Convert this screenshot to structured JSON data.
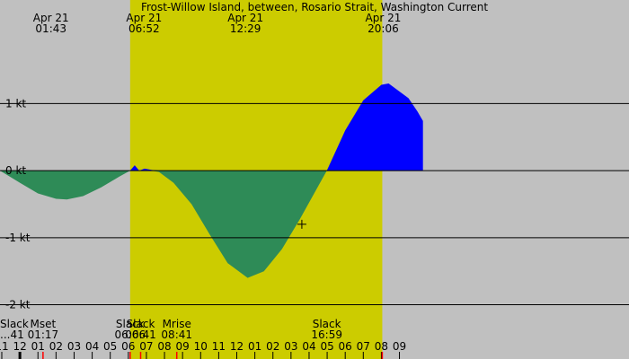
{
  "chart_data": {
    "type": "area",
    "title": "Frost-Willow Island, between, Rosario Strait, Washington Current",
    "unit": "kt",
    "y_ticks": [
      {
        "value": 1,
        "label": "1 kt"
      },
      {
        "value": 0,
        "label": "0 kt"
      },
      {
        "value": -1,
        "label": "-1 kt"
      },
      {
        "value": -2,
        "label": "-2 kt"
      }
    ],
    "ylim": [
      -2.1,
      2.25
    ],
    "x_range_hours": [
      -1.1,
      33.7
    ],
    "day_shading": {
      "start_hour": 6.1,
      "end_hour": 20.05
    },
    "colors": {
      "night": "#c0c0c0",
      "day": "#cccc00",
      "ebb": "#2e8b57",
      "flood": "#0000ff",
      "moon_tick": "#ff0000",
      "sun_tick": "#ff0000"
    },
    "top_labels": [
      {
        "hour": 1.72,
        "date": "Apr 21",
        "time": "01:43"
      },
      {
        "hour": 6.87,
        "date": "Apr 21",
        "time": "06:52"
      },
      {
        "hour": 12.48,
        "date": "Apr 21",
        "time": "12:29"
      },
      {
        "hour": 20.1,
        "date": "Apr 21",
        "time": "20:06"
      }
    ],
    "current_series": [
      {
        "hour": -1.1,
        "kt": 0.0
      },
      {
        "hour": 0.0,
        "kt": -0.18
      },
      {
        "hour": 1.0,
        "kt": -0.34
      },
      {
        "hour": 2.0,
        "kt": -0.42
      },
      {
        "hour": 2.6,
        "kt": -0.43
      },
      {
        "hour": 3.5,
        "kt": -0.38
      },
      {
        "hour": 4.5,
        "kt": -0.25
      },
      {
        "hour": 5.5,
        "kt": -0.09
      },
      {
        "hour": 6.1,
        "kt": 0.0
      },
      {
        "hour": 6.35,
        "kt": 0.08
      },
      {
        "hour": 6.6,
        "kt": 0.0
      },
      {
        "hour": 6.9,
        "kt": 0.03
      },
      {
        "hour": 7.3,
        "kt": 0.01
      },
      {
        "hour": 7.7,
        "kt": -0.02
      },
      {
        "hour": 8.5,
        "kt": -0.18
      },
      {
        "hour": 9.5,
        "kt": -0.5
      },
      {
        "hour": 10.5,
        "kt": -0.95
      },
      {
        "hour": 11.5,
        "kt": -1.38
      },
      {
        "hour": 12.6,
        "kt": -1.6
      },
      {
        "hour": 13.5,
        "kt": -1.5
      },
      {
        "hour": 14.5,
        "kt": -1.17
      },
      {
        "hour": 15.5,
        "kt": -0.72
      },
      {
        "hour": 16.98,
        "kt": 0.0
      },
      {
        "hour": 18.0,
        "kt": 0.6
      },
      {
        "hour": 19.0,
        "kt": 1.05
      },
      {
        "hour": 20.0,
        "kt": 1.28
      },
      {
        "hour": 20.4,
        "kt": 1.3
      },
      {
        "hour": 21.5,
        "kt": 1.08
      },
      {
        "hour": 22.0,
        "kt": 0.88
      },
      {
        "hour": 22.3,
        "kt": 0.74
      }
    ],
    "current_marker": {
      "hour": 15.6,
      "kt": -0.8
    },
    "events": [
      {
        "hour": -1.1,
        "label": "Slack",
        "time": "...41"
      },
      {
        "hour": 1.28,
        "label": "Mset",
        "time": "01:17"
      },
      {
        "hour": 6.1,
        "label": "Slack",
        "time": "06:06"
      },
      {
        "hour": 6.68,
        "label": "Slack",
        "time": "06:41"
      },
      {
        "hour": 8.68,
        "label": "Mrise",
        "time": "08:41"
      },
      {
        "hour": 16.98,
        "label": "Slack",
        "time": "16:59"
      }
    ],
    "hour_axis": [
      {
        "hour": -1,
        "label": "11"
      },
      {
        "hour": 0,
        "label": "12"
      },
      {
        "hour": 1,
        "label": "01"
      },
      {
        "hour": 2,
        "label": "02"
      },
      {
        "hour": 3,
        "label": "03"
      },
      {
        "hour": 4,
        "label": "04"
      },
      {
        "hour": 5,
        "label": "05"
      },
      {
        "hour": 6,
        "label": "06"
      },
      {
        "hour": 7,
        "label": "07"
      },
      {
        "hour": 8,
        "label": "08"
      },
      {
        "hour": 9,
        "label": "09"
      },
      {
        "hour": 10,
        "label": "10"
      },
      {
        "hour": 11,
        "label": "11"
      },
      {
        "hour": 12,
        "label": "12"
      },
      {
        "hour": 13,
        "label": "01"
      },
      {
        "hour": 14,
        "label": "02"
      },
      {
        "hour": 15,
        "label": "03"
      },
      {
        "hour": 16,
        "label": "04"
      },
      {
        "hour": 17,
        "label": "05"
      },
      {
        "hour": 18,
        "label": "06"
      },
      {
        "hour": 19,
        "label": "07"
      },
      {
        "hour": 20,
        "label": "08"
      },
      {
        "hour": 21,
        "label": "09"
      }
    ],
    "special_ticks": [
      {
        "hour": 0,
        "kind": "midnight"
      },
      {
        "hour": 1.28,
        "kind": "moon"
      },
      {
        "hour": 6.1,
        "kind": "sun"
      },
      {
        "hour": 6.68,
        "kind": "moon"
      },
      {
        "hour": 8.68,
        "kind": "moon"
      },
      {
        "hour": 20.05,
        "kind": "sun"
      }
    ]
  }
}
